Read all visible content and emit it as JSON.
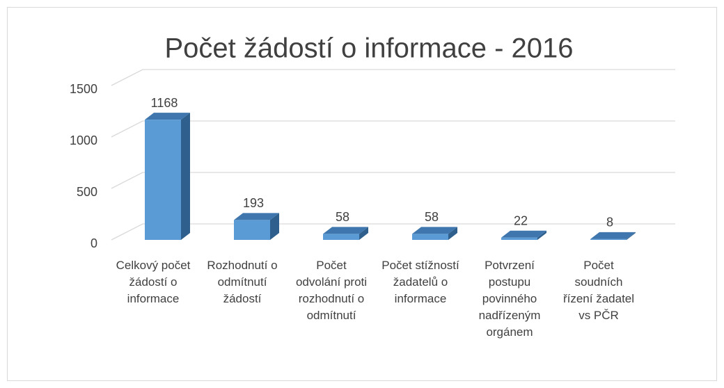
{
  "chart_data": {
    "type": "bar3d",
    "title": "Počet žádostí o informace - 2016",
    "categories": [
      "Celkový počet žádostí o informace",
      "Rozhodnutí o odmítnutí žádostí",
      "Počet odvolání proti rozhodnutí o odmítnutí",
      "Počet stížností žadatelů o informace",
      "Potvrzení postupu povinného nadřízeným orgánem",
      "Počet soudních řízení žadatel vs PČR"
    ],
    "values": [
      1168,
      193,
      58,
      58,
      22,
      8
    ],
    "color": "#5b9bd5",
    "ylim": [
      0,
      1500
    ],
    "yticks": [
      0,
      500,
      1000,
      1500
    ],
    "grid": true
  }
}
